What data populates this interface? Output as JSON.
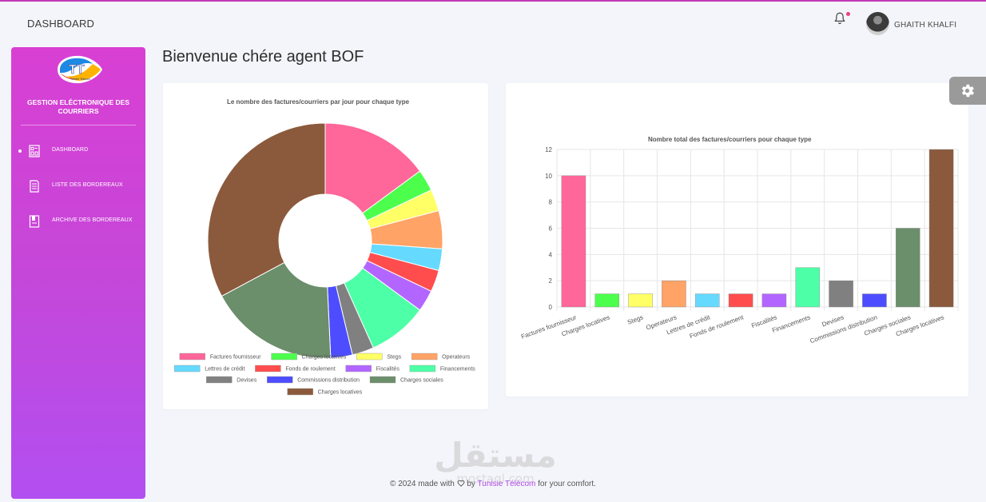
{
  "topbar": {
    "title": "DASHBOARD",
    "username": "GHAITH KHALFI"
  },
  "sidebar": {
    "brand": "GESTION ELÉCTRONIQUE DES COURRIERS",
    "logo_text": "TT",
    "logo_subtext": "Tunisie Telecom",
    "items": [
      {
        "label": "DASHBOARD",
        "icon": "dashboard-icon",
        "active": true
      },
      {
        "label": "LISTE DES BORDEREAUX",
        "icon": "list-icon",
        "active": false
      },
      {
        "label": "ARCHIVE DES BORDEREAUX",
        "icon": "archive-icon",
        "active": false
      }
    ]
  },
  "main": {
    "welcome": "Bienvenue chére agent BOF"
  },
  "colors": {
    "accent": "#c547d9",
    "series": [
      "#ff6699",
      "#4dff4d",
      "#ffff66",
      "#ffa366",
      "#66d9ff",
      "#ff4d4d",
      "#b366ff",
      "#4dffa6",
      "#808080",
      "#4d4dff",
      "#6b8e6b",
      "#8b5a3c"
    ]
  },
  "chart_data": [
    {
      "type": "pie",
      "variant": "doughnut",
      "title": "Le nombre des factures/courriers par jour pour chaque type",
      "categories": [
        "Factures fournisseur",
        "Charges locatives",
        "Stegs",
        "Operateurs",
        "Lettres de crédit",
        "Fonds de roulement",
        "Fiscalités",
        "Financements",
        "Devises",
        "Commissions distribution",
        "Charges sociales",
        "Charges locatives"
      ],
      "values": [
        10,
        2,
        2,
        3.5,
        2,
        2,
        2,
        5.5,
        2,
        2,
        12,
        22
      ],
      "legend": "bottom"
    },
    {
      "type": "bar",
      "title": "Nombre total des factures/courriers pour chaque type",
      "categories": [
        "Factures fournisseur",
        "Charges locatives",
        "Stegs",
        "Operateurs",
        "Lettres de crédit",
        "Fonds de roulement",
        "Fiscalités",
        "Financements",
        "Devises",
        "Commissions distribution",
        "Charges sociales",
        "Charges locatives"
      ],
      "values": [
        10,
        1,
        1,
        2,
        1,
        1,
        1,
        3,
        2,
        1,
        6,
        12
      ],
      "ylim": [
        0,
        12
      ],
      "yticks": [
        0,
        2,
        4,
        6,
        8,
        10,
        12
      ],
      "grid": true
    }
  ],
  "footer": {
    "prefix": "© 2024 made with",
    "by": "by",
    "brand": "Tunisie Télécom",
    "suffix": "for your comfort."
  },
  "watermark": {
    "text": "مستقل",
    "subtext": "mostaql.com"
  }
}
